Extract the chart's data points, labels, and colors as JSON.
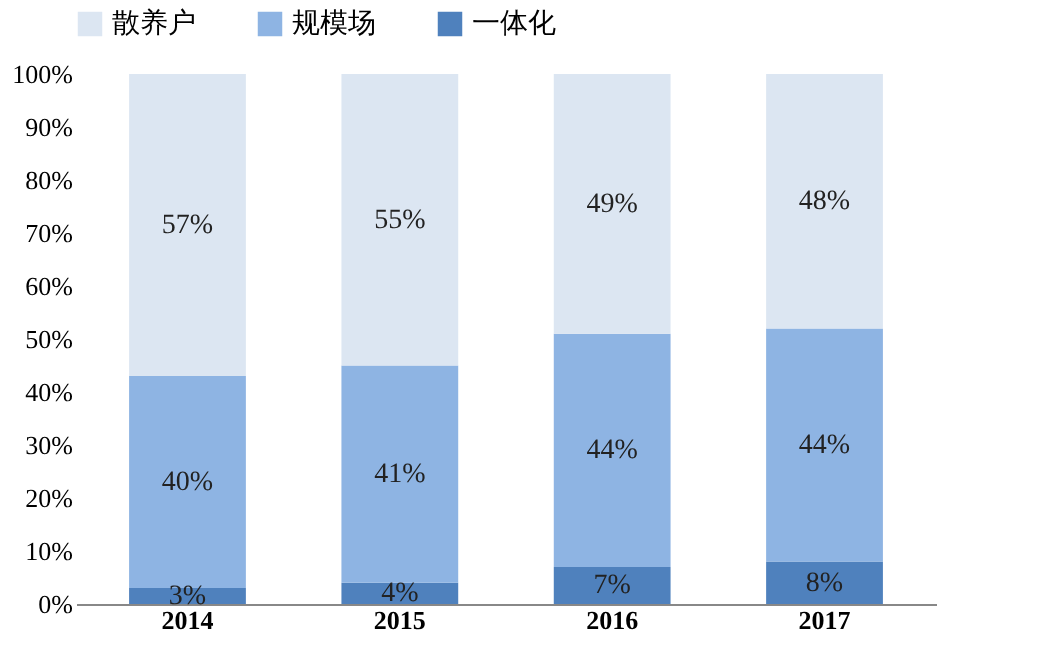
{
  "chart_data": {
    "type": "bar",
    "stacked": true,
    "categories": [
      "2014",
      "2015",
      "2016",
      "2017"
    ],
    "series": [
      {
        "name": "一体化",
        "color": "#4f81bd",
        "values": [
          3,
          4,
          7,
          8
        ],
        "value_labels": [
          "3%",
          "4%",
          "7%",
          "8%"
        ]
      },
      {
        "name": "规模场",
        "color": "#8eb4e3",
        "values": [
          40,
          41,
          44,
          44
        ],
        "value_labels": [
          "40%",
          "41%",
          "44%",
          "44%"
        ]
      },
      {
        "name": "散养户",
        "color": "#dce6f2",
        "values": [
          57,
          55,
          49,
          48
        ],
        "value_labels": [
          "57%",
          "55%",
          "49%",
          "48%"
        ]
      }
    ],
    "ylim": [
      0,
      100
    ],
    "yticks": [
      {
        "value": 0,
        "label": "0%"
      },
      {
        "value": 10,
        "label": "10%"
      },
      {
        "value": 20,
        "label": "20%"
      },
      {
        "value": 30,
        "label": "30%"
      },
      {
        "value": 40,
        "label": "40%"
      },
      {
        "value": 50,
        "label": "50%"
      },
      {
        "value": 60,
        "label": "60%"
      },
      {
        "value": 70,
        "label": "70%"
      },
      {
        "value": 80,
        "label": "80%"
      },
      {
        "value": 90,
        "label": "90%"
      },
      {
        "value": 100,
        "label": "100%"
      }
    ],
    "legend": "top",
    "grid": false
  }
}
